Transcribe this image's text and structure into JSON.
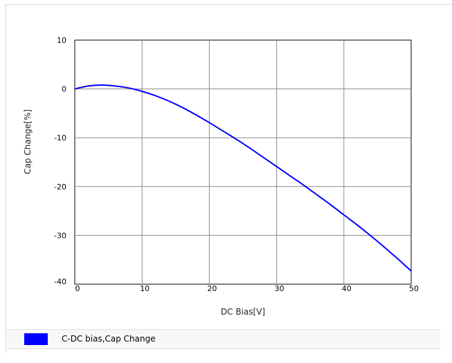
{
  "chart_data": {
    "type": "line",
    "xlabel": "DC Bias[V]",
    "ylabel": "Cap Change[%]",
    "xlim": [
      0,
      50
    ],
    "ylim": [
      -40,
      10
    ],
    "xticks": [
      "0",
      "10",
      "20",
      "30",
      "40",
      "50"
    ],
    "yticks": [
      "10",
      "0",
      "-10",
      "-20",
      "-30",
      "-40"
    ],
    "grid": true,
    "legend_position": "bottom",
    "series": [
      {
        "name": "C-DC bias,Cap Change",
        "color": "#0000ff",
        "x": [
          0,
          2,
          4,
          6,
          8,
          10,
          12,
          14,
          16,
          18,
          20,
          22,
          24,
          26,
          28,
          30,
          32,
          34,
          36,
          38,
          40,
          42,
          44,
          46,
          48,
          50
        ],
        "y": [
          0,
          0.6,
          0.8,
          0.6,
          0.2,
          -0.5,
          -1.4,
          -2.5,
          -3.8,
          -5.3,
          -6.9,
          -8.6,
          -10.3,
          -12.1,
          -14.0,
          -15.9,
          -17.8,
          -19.7,
          -21.7,
          -23.7,
          -25.8,
          -27.9,
          -30.1,
          -32.4,
          -34.8,
          -37.3
        ]
      }
    ]
  }
}
